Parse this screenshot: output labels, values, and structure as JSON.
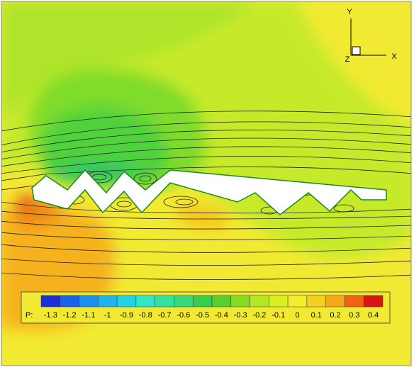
{
  "chart_data": {
    "type": "contour",
    "colorbar_label": "P:",
    "levels": [
      -1.3,
      -1.2,
      -1.1,
      -1,
      -0.9,
      -0.8,
      -0.7,
      -0.6,
      -0.5,
      -0.4,
      -0.3,
      -0.2,
      -0.1,
      0,
      0.1,
      0.2,
      0.3,
      0.4
    ],
    "colors": [
      "#1a2fd8",
      "#1763ee",
      "#1a90f0",
      "#1fb4f0",
      "#22d2e6",
      "#2ee6cc",
      "#33e2a2",
      "#36d97e",
      "#35cf52",
      "#55d030",
      "#86dc22",
      "#b4e822",
      "#d8f022",
      "#f2ee2e",
      "#f6d020",
      "#f5a81a",
      "#ee6412",
      "#dc1414"
    ],
    "axis_labels": {
      "y": "Y",
      "x": "X",
      "z": "Z"
    }
  }
}
